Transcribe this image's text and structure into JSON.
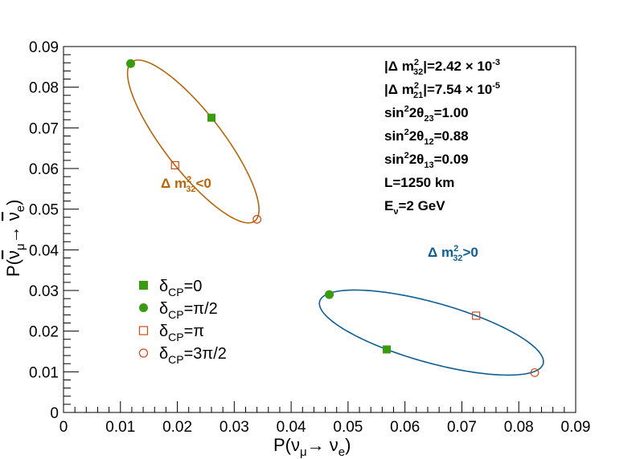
{
  "chart_data": {
    "type": "scatter",
    "xlabel": "P(ν_μ→ ν_e)",
    "ylabel": "P(ν̄_μ→ ν̄_e)",
    "xlim": [
      0,
      0.09
    ],
    "ylim": [
      0,
      0.09
    ],
    "xticks": [
      "0",
      "0.01",
      "0.02",
      "0.03",
      "0.04",
      "0.05",
      "0.06",
      "0.07",
      "0.08",
      "0.09"
    ],
    "yticks": [
      "0",
      "0.01",
      "0.02",
      "0.03",
      "0.04",
      "0.05",
      "0.06",
      "0.07",
      "0.08",
      "0.09"
    ],
    "grid": false,
    "legend_position": "middle-left",
    "colors": {
      "negative_hierarchy": "#b8650a",
      "positive_hierarchy": "#0e5f93",
      "green_marker": "#3a9a10",
      "red_marker": "#d04a1a"
    },
    "ellipses": [
      {
        "name": "Δ m²_32<0",
        "label_main": "Δ m",
        "label_sup": "2",
        "label_sub": "32",
        "label_rest": "<0",
        "color": "#b8650a",
        "points": [
          {
            "delta": "0",
            "x": 0.026,
            "y": 0.0725
          },
          {
            "delta": "π/2",
            "x": 0.0118,
            "y": 0.0858
          },
          {
            "delta": "π",
            "x": 0.0196,
            "y": 0.0608
          },
          {
            "delta": "3π/2",
            "x": 0.034,
            "y": 0.0475
          }
        ]
      },
      {
        "name": "Δ m²_32>0",
        "label_main": "Δ m",
        "label_sup": "2",
        "label_sub": "32",
        "label_rest": ">0",
        "color": "#0e5f93",
        "points": [
          {
            "delta": "0",
            "x": 0.0568,
            "y": 0.0155
          },
          {
            "delta": "π/2",
            "x": 0.0467,
            "y": 0.029
          },
          {
            "delta": "π",
            "x": 0.0725,
            "y": 0.0238
          },
          {
            "delta": "3π/2",
            "x": 0.0828,
            "y": 0.0098
          }
        ]
      }
    ],
    "legend": [
      {
        "marker": "filled-square",
        "prefix": "δ",
        "sub": "CP",
        "value": "=0"
      },
      {
        "marker": "filled-circle",
        "prefix": "δ",
        "sub": "CP",
        "value": "=π/2"
      },
      {
        "marker": "open-square",
        "prefix": "δ",
        "sub": "CP",
        "value": "=π"
      },
      {
        "marker": "open-circle",
        "prefix": "δ",
        "sub": "CP",
        "value": "=3π/2"
      }
    ],
    "parameters": [
      {
        "main": "|Δ m",
        "sup": "2",
        "sub": "32",
        "rest": "|=2.42 × 10",
        "exp": "-3"
      },
      {
        "main": "|Δ m",
        "sup": "2",
        "sub": "21",
        "rest": "|=7.54 × 10",
        "exp": "-5"
      },
      {
        "main": "sin",
        "sup": "2",
        "rest2": "2θ",
        "sub": "23",
        "rest": "=1.00"
      },
      {
        "main": "sin",
        "sup": "2",
        "rest2": "2θ",
        "sub": "12",
        "rest": "=0.88"
      },
      {
        "main": "sin",
        "sup": "2",
        "rest2": "2θ",
        "sub": "13",
        "rest": "=0.09"
      },
      {
        "main": "L=1250 km"
      },
      {
        "main": "E",
        "sub": "ν",
        "rest": "=2 GeV"
      }
    ]
  }
}
